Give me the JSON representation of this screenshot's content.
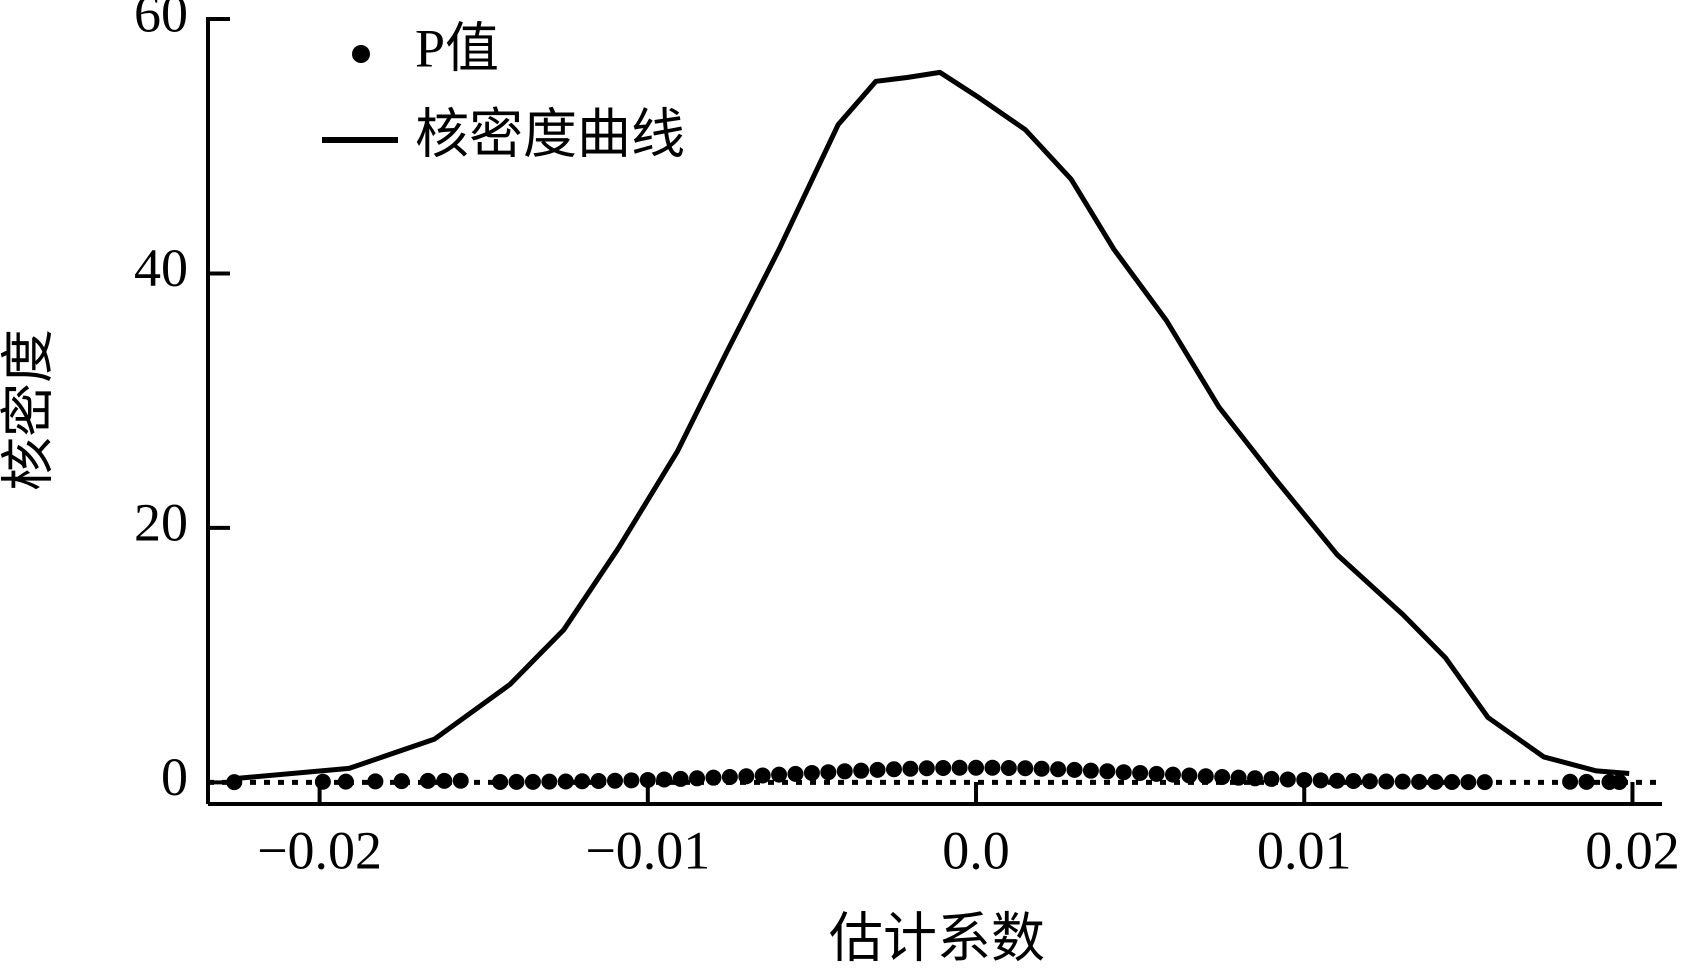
{
  "chart_data": {
    "type": "density-scatter",
    "xlabel": "估计系数",
    "ylabel": "核密度",
    "xlim": [
      -0.0234,
      0.0209
    ],
    "ylim": [
      -1.7,
      60
    ],
    "xticks": [
      {
        "value": -0.02,
        "label": "−0.02"
      },
      {
        "value": -0.01,
        "label": "−0.01"
      },
      {
        "value": 0,
        "label": "0.0"
      },
      0.01,
      0.02
    ],
    "yticks": [
      0,
      20,
      40,
      60
    ],
    "zero_line": true,
    "legend": "upper left",
    "series": [
      {
        "name": "P值",
        "kind": "scatter",
        "color": "#000000",
        "x": [
          -0.0226,
          -0.0199,
          -0.0192,
          -0.0183,
          -0.0175,
          -0.0167,
          -0.0162,
          -0.0157,
          -0.0145,
          -0.014,
          -0.0135,
          -0.013,
          -0.0125,
          -0.012,
          -0.0115,
          -0.011,
          -0.0105,
          -0.01,
          -0.0095,
          -0.009,
          -0.0085,
          -0.008,
          -0.0075,
          -0.007,
          -0.0065,
          -0.006,
          -0.0055,
          -0.005,
          -0.0045,
          -0.004,
          -0.0035,
          -0.003,
          -0.0025,
          -0.002,
          -0.0015,
          -0.001,
          -0.0005,
          0,
          0.0005,
          0.001,
          0.0015,
          0.002,
          0.0025,
          0.003,
          0.0035,
          0.004,
          0.0045,
          0.005,
          0.0055,
          0.006,
          0.0065,
          0.007,
          0.0075,
          0.008,
          0.0085,
          0.009,
          0.0095,
          0.01,
          0.0105,
          0.011,
          0.0115,
          0.012,
          0.0125,
          0.013,
          0.0135,
          0.014,
          0.0145,
          0.015,
          0.0155,
          0.0181,
          0.0186,
          0.0193,
          0.0196
        ],
        "y": [
          0.02,
          0.05,
          0.06,
          0.08,
          0.1,
          0.12,
          0.12,
          0.13,
          0.03,
          0.04,
          0.04,
          0.06,
          0.07,
          0.09,
          0.11,
          0.13,
          0.16,
          0.19,
          0.23,
          0.27,
          0.32,
          0.37,
          0.42,
          0.48,
          0.54,
          0.61,
          0.67,
          0.74,
          0.8,
          0.87,
          0.92,
          0.98,
          1.03,
          1.07,
          1.11,
          1.13,
          1.15,
          1.15,
          1.15,
          1.13,
          1.11,
          1.07,
          1.03,
          0.98,
          0.92,
          0.87,
          0.8,
          0.74,
          0.67,
          0.61,
          0.54,
          0.48,
          0.42,
          0.37,
          0.32,
          0.27,
          0.23,
          0.19,
          0.16,
          0.13,
          0.11,
          0.09,
          0.07,
          0.06,
          0.04,
          0.04,
          0.03,
          0.02,
          0.02,
          0.05,
          0.04,
          0.03,
          0.03
        ]
      },
      {
        "name": "核密度曲线",
        "kind": "line",
        "color": "#000000",
        "x": [
          -0.0226,
          -0.0191,
          -0.0165,
          -0.0142,
          -0.01256,
          -0.0109,
          -0.0091,
          -0.0076,
          -0.006,
          -0.0042,
          -0.00305,
          -0.0021,
          -0.0011,
          0.0001,
          0.0015,
          0.0029,
          0.0042,
          0.0058,
          0.0074,
          0.0091,
          0.011,
          0.013,
          0.0143,
          0.0156,
          0.0173,
          0.0189,
          0.0199
        ],
        "y": [
          0.3,
          1.1,
          3.4,
          7.7,
          12,
          18.4,
          26,
          33.8,
          41.9,
          51.7,
          55.1,
          55.4,
          55.8,
          53.8,
          51.3,
          47.4,
          41.9,
          36.3,
          29.5,
          23.9,
          17.9,
          13.2,
          9.8,
          5.1,
          2.0,
          0.9,
          0.7
        ]
      }
    ]
  }
}
